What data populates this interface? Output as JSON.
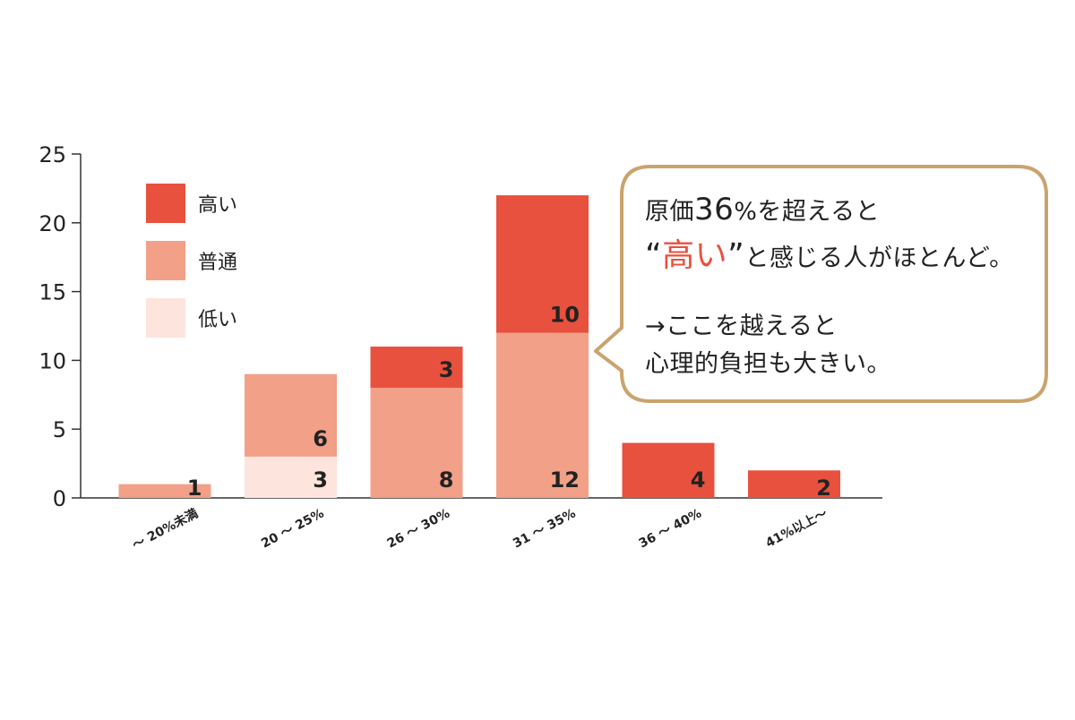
{
  "chart_data": {
    "type": "bar",
    "stacked": true,
    "categories": [
      "〜 20%未満",
      "20 〜 25%",
      "26 〜 30%",
      "31 〜 35%",
      "36 〜 40%",
      "41%以上〜"
    ],
    "series": [
      {
        "name": "低い",
        "color": "#fde4dc",
        "values": [
          0,
          3,
          0,
          0,
          0,
          0
        ]
      },
      {
        "name": "普通",
        "color": "#f2a088",
        "values": [
          1,
          6,
          8,
          12,
          0,
          0
        ]
      },
      {
        "name": "高い",
        "color": "#e8513d",
        "values": [
          0,
          0,
          3,
          10,
          4,
          2
        ]
      }
    ],
    "legend_order": [
      "高い",
      "普通",
      "低い"
    ],
    "legend_placement": "top-left",
    "ylim": [
      0,
      25
    ],
    "yticks": [
      0,
      5,
      10,
      15,
      20,
      25
    ],
    "grid": false,
    "title": "",
    "xlabel": "",
    "ylabel": ""
  },
  "callout": {
    "line1": {
      "a": "原価",
      "b": "36",
      "c": "%を超えると"
    },
    "line2": {
      "open_quote": "“",
      "highlight": "高い",
      "close_quote": "”",
      "rest": "と感じる人がほとんど。"
    },
    "line3": "→ここを越えると",
    "line4": "心理的負担も大きい。",
    "border_color": "#c9a46e",
    "highlight_color": "#e8513d"
  }
}
